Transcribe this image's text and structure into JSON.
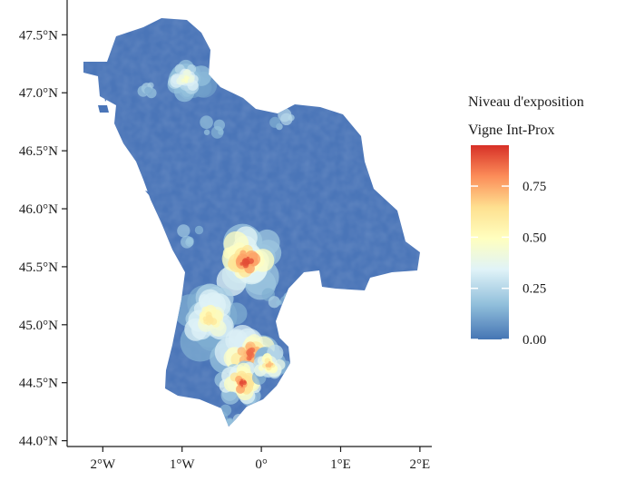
{
  "map": {
    "region_fill": "#4a75b8",
    "axes": {
      "y_ticks": [
        {
          "value": 47.5,
          "label": "47.5°N"
        },
        {
          "value": 47.0,
          "label": "47.0°N"
        },
        {
          "value": 46.5,
          "label": "46.5°N"
        },
        {
          "value": 46.0,
          "label": "46.0°N"
        },
        {
          "value": 45.5,
          "label": "45.5°N"
        },
        {
          "value": 45.0,
          "label": "45.0°N"
        },
        {
          "value": 44.5,
          "label": "44.5°N"
        },
        {
          "value": 44.0,
          "label": "44.0°N"
        }
      ],
      "x_ticks": [
        {
          "value": -2,
          "label": "2°W"
        },
        {
          "value": -1,
          "label": "1°W"
        },
        {
          "value": 0,
          "label": "0°"
        },
        {
          "value": 1,
          "label": "1°E"
        },
        {
          "value": 2,
          "label": "2°E"
        }
      ],
      "lat_range": [
        43.95,
        47.8
      ],
      "lon_range": [
        -2.45,
        2.15
      ]
    },
    "legend": {
      "title_line1": "Niveau d'exposition",
      "title_line2": "Vigne Int-Prox",
      "range": [
        0,
        0.95
      ],
      "ticks": [
        {
          "value": 0.0,
          "label": "0.00"
        },
        {
          "value": 0.25,
          "label": "0.25"
        },
        {
          "value": 0.5,
          "label": "0.50"
        },
        {
          "value": 0.75,
          "label": "0.75"
        }
      ],
      "colors": [
        "#4575b4",
        "#91bfdb",
        "#e0f3f8",
        "#ffffbf",
        "#fee090",
        "#fc8d59",
        "#d73027"
      ]
    },
    "hotspots": [
      {
        "lon": -0.95,
        "lat": 47.12,
        "value": 0.45,
        "spread": 0.12
      },
      {
        "lon": -0.2,
        "lat": 45.55,
        "value": 0.9,
        "spread": 0.18
      },
      {
        "lon": -0.65,
        "lat": 45.05,
        "value": 0.6,
        "spread": 0.18
      },
      {
        "lon": -0.15,
        "lat": 44.75,
        "value": 0.85,
        "spread": 0.16
      },
      {
        "lon": -0.25,
        "lat": 44.5,
        "value": 0.9,
        "spread": 0.12
      },
      {
        "lon": 0.1,
        "lat": 44.65,
        "value": 0.7,
        "spread": 0.1
      }
    ]
  }
}
